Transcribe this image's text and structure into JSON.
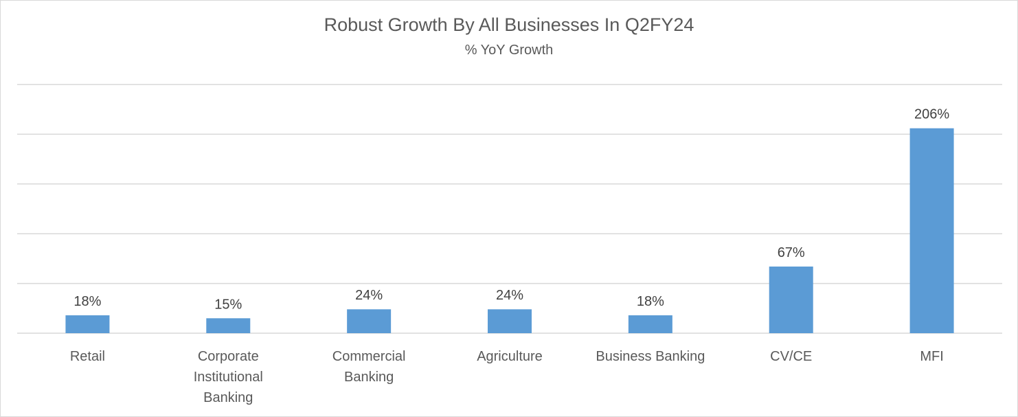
{
  "colors": {
    "bar": "#5b9bd5",
    "grid": "#d9d9d9",
    "title": "#595959",
    "label": "#404040"
  },
  "chart_data": {
    "type": "bar",
    "title": "Robust Growth By All Businesses In Q2FY24",
    "subtitle": "% YoY Growth",
    "xlabel": "",
    "ylabel": "",
    "categories": [
      [
        "Retail"
      ],
      [
        "Corporate",
        "Institutional",
        "Banking"
      ],
      [
        "Commercial",
        "Banking"
      ],
      [
        "Agriculture"
      ],
      [
        "Business Banking"
      ],
      [
        "CV/CE"
      ],
      [
        "MFI"
      ]
    ],
    "values": [
      18,
      15,
      24,
      24,
      18,
      67,
      206
    ],
    "data_labels": [
      "18%",
      "15%",
      "24%",
      "24%",
      "18%",
      "67%",
      "206%"
    ],
    "ylim": [
      0,
      250
    ],
    "ytick_step": 50,
    "grid": true,
    "legend": "none"
  }
}
